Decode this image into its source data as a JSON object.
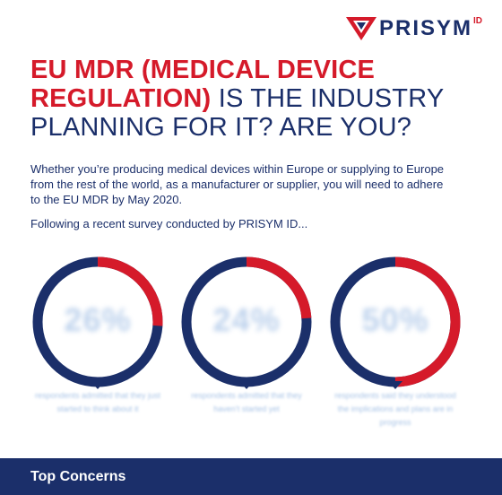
{
  "brand": {
    "logo_text": "PRISYM",
    "logo_suffix": "ID",
    "red": "#d51a2a",
    "navy": "#1b2f6a"
  },
  "title": {
    "highlight": "EU MDR (MEDICAL DEVICE REGULATION)",
    "rest": "IS THE INDUSTRY PLANNING FOR IT? ARE YOU?"
  },
  "intro": "Whether you’re producing medical devices within Europe or supplying to Europe from the rest of the world, as a manufacturer or supplier, you will need to adhere to the EU MDR by May 2020.",
  "follow_up": "Following a recent survey conducted by PRISYM ID...",
  "stats": [
    {
      "value_label": "26%",
      "fraction": 0.26,
      "caption": "respondents admitted that they just started to think about it"
    },
    {
      "value_label": "24%",
      "fraction": 0.24,
      "caption": "respondents admitted that they haven’t started yet"
    },
    {
      "value_label": "50%",
      "fraction": 0.5,
      "caption": "respondents said they understood the implications and plans are in progress"
    }
  ],
  "footer": {
    "title": "Top Concerns"
  }
}
